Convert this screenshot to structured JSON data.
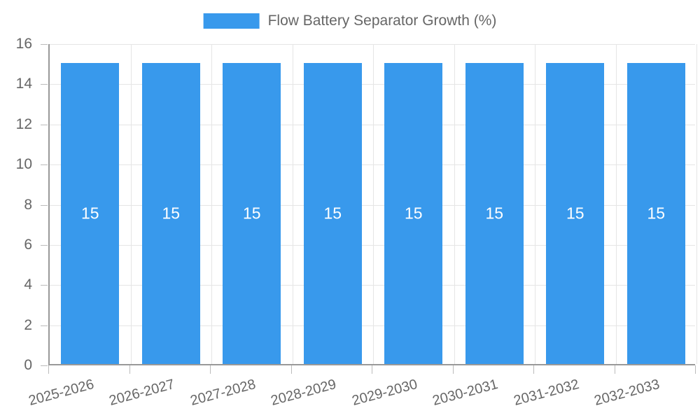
{
  "legend": {
    "label": "Flow Battery Separator Growth (%)"
  },
  "chart_data": {
    "type": "bar",
    "title": "Flow Battery Separator Growth (%)",
    "categories": [
      "2025-2026",
      "2026-2027",
      "2027-2028",
      "2028-2029",
      "2029-2030",
      "2030-2031",
      "2031-2032",
      "2032-2033"
    ],
    "values": [
      15,
      15,
      15,
      15,
      15,
      15,
      15,
      15
    ],
    "bar_labels": [
      "15",
      "15",
      "15",
      "15",
      "15",
      "15",
      "15",
      "15"
    ],
    "xlabel": "",
    "ylabel": "",
    "ylim": [
      0,
      16
    ],
    "yticks": [
      0,
      2,
      4,
      6,
      8,
      10,
      12,
      14,
      16
    ],
    "grid": true,
    "legend_position": "top-center",
    "colors": {
      "bar": "#3899EC",
      "bar_label": "#FFFFFF",
      "axis_text": "#666666",
      "legend_text": "#666666",
      "gridline": "#E5E5E5",
      "axis_line": "#999999"
    }
  }
}
